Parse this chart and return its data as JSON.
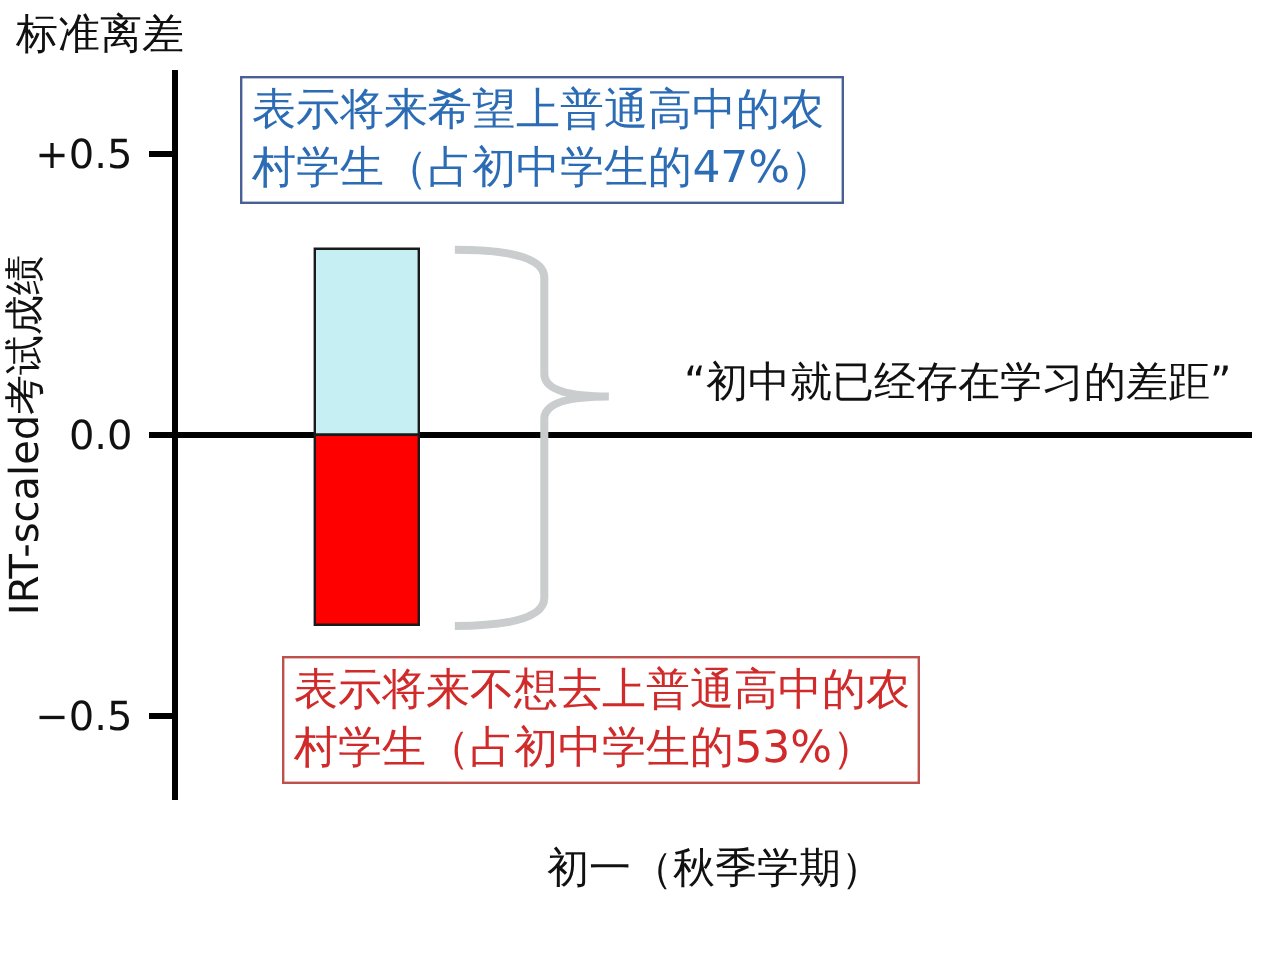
{
  "chart_data": {
    "type": "bar",
    "stacked": true,
    "categories": [
      null
    ],
    "series": [
      {
        "color": "#c6eff3",
        "values": [
          0.33
        ]
      },
      {
        "color": "#ff0000",
        "values": [
          -0.34
        ]
      }
    ],
    "ylabel": "IRT-scaled考试成绩",
    "xlabel": "初一（秋季学期）",
    "ylim": [
      -0.65,
      0.65
    ],
    "yticks": [
      {
        "value": 0.5,
        "label": "+0.5"
      },
      {
        "value": 0,
        "label": "0.0"
      },
      {
        "value": -0.5,
        "label": "−0.5"
      }
    ],
    "tick_labels": "y",
    "annotations": [
      "标准离差",
      "表示将来希望上普通高中的农村学生（占初中学生的47%）",
      "表示将来不想去上普通高中的农村学生（占初中学生的53%）",
      "“初中就已经存在学习的差距”"
    ]
  }
}
